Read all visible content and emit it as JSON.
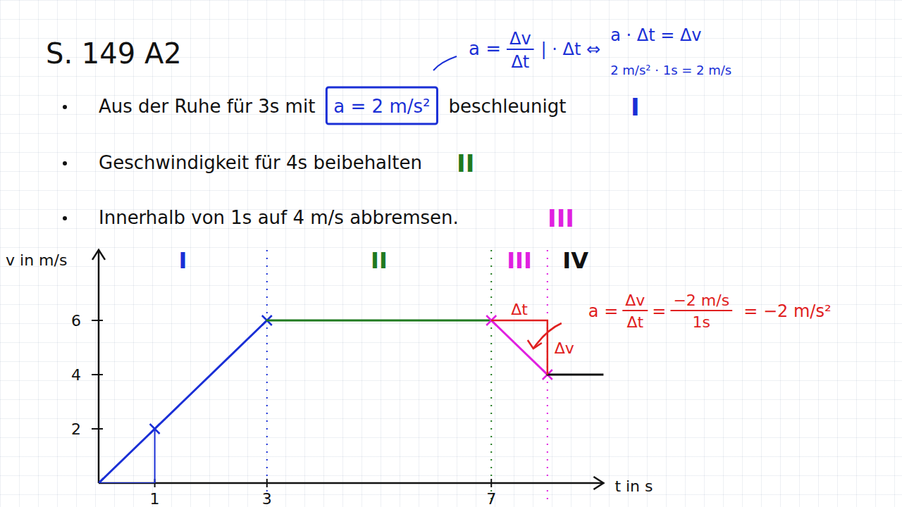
{
  "heading": "S. 149 A2",
  "bullets": [
    {
      "text": "Aus der Ruhe für 3s mit",
      "boxed": "a = 2 m/s²",
      "tail": "beschleunigt",
      "phase": 0
    },
    {
      "text": "Geschwindigkeit für 4s beibehalten",
      "phase": 1
    },
    {
      "text": "Innerhalb von 1s auf 4 m/s abbremsen.",
      "phase": 2
    }
  ],
  "formula": {
    "lhs": "a =",
    "num": "Δv",
    "den": "Δt",
    "op": "| · Δt  ⇔",
    "rhs": "a · Δt = Δv",
    "example": "2 m/s² · 1s = 2 m/s"
  },
  "chart_data": {
    "type": "line",
    "x_label": "t in s",
    "y_label": "v in m/s",
    "xlim": [
      0,
      9
    ],
    "ylim": [
      0,
      8.6
    ],
    "xticks": [
      1,
      3,
      7
    ],
    "yticks": [
      2,
      4,
      6
    ],
    "grid": false,
    "series": [
      {
        "name": "I",
        "color": "#1a2fd6",
        "marker": "x",
        "x": [
          0,
          1,
          3
        ],
        "values": [
          0,
          2,
          6
        ]
      },
      {
        "name": "II",
        "color": "#1f7a1f",
        "x": [
          3,
          7
        ],
        "values": [
          6,
          6
        ]
      },
      {
        "name": "III",
        "color": "#e020e0",
        "marker": "x",
        "x": [
          7,
          8
        ],
        "values": [
          6,
          4
        ]
      },
      {
        "name": "IV",
        "color": "#111111",
        "x": [
          8,
          9
        ],
        "values": [
          4,
          4
        ]
      }
    ],
    "annotations": {
      "dt": "Δt",
      "dv": "Δv",
      "color": "#e02020",
      "formula": {
        "lhs": "a =",
        "num1": "Δv",
        "den1": "Δt",
        "eq": "=",
        "num2": "−2 m/s",
        "den2": "1s",
        "result": "= −2 m/s²"
      }
    }
  }
}
